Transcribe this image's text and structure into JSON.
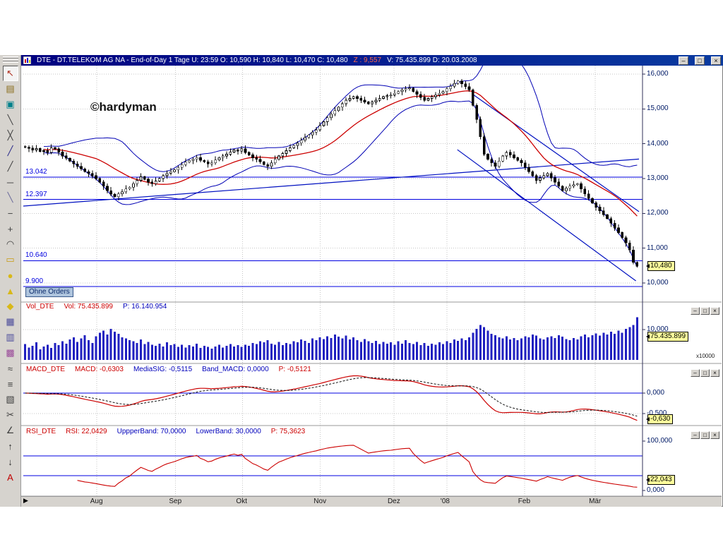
{
  "colors": {
    "title_bg": "#000080",
    "z_red": "#ff6a4a",
    "header_red": "#cc0000",
    "header_blue": "#0000bb",
    "hline_blue": "#0000e0",
    "tag_bg": "#ffff9c",
    "axis_text": "#001a66",
    "grid_gray": "#c6c6c6",
    "band_blue": "#0000b4",
    "trend_blue": "#0010c0",
    "ma_red": "#cc0000",
    "volume_blue": "#2020c0",
    "macd_red": "#cc0000",
    "macd_signal": "#111111",
    "rsi_red": "#cc0000",
    "separator": "#9a9a9a",
    "axis_line": "#30305a"
  },
  "title_bar": {
    "left": "DTE - DT.TELEKOM AG NA - End-of-Day 1 Tage  U: 23:59  O: 10,590  H: 10,840  L: 10,470  C: 10,480",
    "z": "Z : 9,557",
    "right": "V: 75.435.899  D: 20.03.2008",
    "buttons": {
      "minimize": "–",
      "maximize": "□",
      "close": "×"
    }
  },
  "panel_buttons": {
    "minimize": "–",
    "maximize": "□",
    "close": "×"
  },
  "watermark": "©hardyman",
  "toolbar": {
    "tools": [
      {
        "name": "pointer-tool",
        "glyph": "↖",
        "color": "#b03020",
        "active": true
      },
      {
        "name": "layers-tool",
        "glyph": "▤",
        "color": "#8a6d1c"
      },
      {
        "name": "zoom-region-tool",
        "glyph": "▣",
        "color": "#00808a"
      },
      {
        "name": "trendline-tool",
        "glyph": "╲",
        "color": "#404040"
      },
      {
        "name": "crossline-tool",
        "glyph": "╳",
        "color": "#404040"
      },
      {
        "name": "regression-tool",
        "glyph": "╱",
        "color": "#2a2a8a"
      },
      {
        "name": "ray-tool",
        "glyph": "╱",
        "color": "#404040"
      },
      {
        "name": "extended-line-tool",
        "glyph": "─",
        "color": "#404040"
      },
      {
        "name": "segment-tool",
        "glyph": "╲",
        "color": "#6a6a9a"
      },
      {
        "name": "minus-tool",
        "glyph": "−",
        "color": "#404040"
      },
      {
        "name": "plus-tool",
        "glyph": "+",
        "color": "#404040"
      },
      {
        "name": "arc-tool",
        "glyph": "◠",
        "color": "#404040"
      },
      {
        "name": "rectangle-tool",
        "glyph": "▭",
        "color": "#c89a10"
      },
      {
        "name": "ellipse-tool",
        "glyph": "●",
        "color": "#d8b818"
      },
      {
        "name": "triangle-tool",
        "glyph": "▲",
        "color": "#d8b818"
      },
      {
        "name": "diamond-tool",
        "glyph": "◆",
        "color": "#d8b818"
      },
      {
        "name": "grid-tool",
        "glyph": "▦",
        "color": "#4a4a9a"
      },
      {
        "name": "columns-tool",
        "glyph": "▥",
        "color": "#4a4a9a"
      },
      {
        "name": "pattern-tool",
        "glyph": "▩",
        "color": "#9a4a9a"
      },
      {
        "name": "wave-tool",
        "glyph": "≈",
        "color": "#404040"
      },
      {
        "name": "fibonacci-tool",
        "glyph": "≡",
        "color": "#404040"
      },
      {
        "name": "list-tool",
        "glyph": "▧",
        "color": "#404040"
      },
      {
        "name": "cut-tool",
        "glyph": "✂",
        "color": "#404040"
      },
      {
        "name": "angle-tool",
        "glyph": "∠",
        "color": "#404040"
      },
      {
        "name": "arrow-up-tool",
        "glyph": "↑",
        "color": "#303030"
      },
      {
        "name": "arrow-down-tool",
        "glyph": "↓",
        "color": "#303030"
      },
      {
        "name": "text-tool",
        "glyph": "A",
        "color": "#c00000"
      }
    ]
  },
  "price_panel": {
    "ticks": [
      {
        "label": "16,000",
        "value": 16000
      },
      {
        "label": "15,000",
        "value": 15000
      },
      {
        "label": "14,000",
        "value": 14000
      },
      {
        "label": "13,000",
        "value": 13000
      },
      {
        "label": "12,000",
        "value": 12000
      },
      {
        "label": "11,000",
        "value": 11000
      },
      {
        "label": "10,000",
        "value": 10000
      }
    ],
    "hlines": [
      {
        "label": "13.042",
        "value": 13042
      },
      {
        "label": "12.397",
        "value": 12397
      },
      {
        "label": "10.640",
        "value": 10640
      },
      {
        "label": "9.900",
        "value": 9900
      }
    ],
    "last_price_tag": "10,480",
    "orders_label": "Ohne Orders"
  },
  "volume_panel": {
    "name": "Vol_DTE",
    "fields": [
      {
        "text": "Vol: 75.435.899",
        "color": "red"
      },
      {
        "text": "P: 16.140.954",
        "color": "blue"
      }
    ],
    "axis_tick": "10,000",
    "multiplier": "x10000",
    "tag": "75.435.899"
  },
  "macd_panel": {
    "name": "MACD_DTE",
    "fields": [
      {
        "text": "MACD: -0,6303",
        "color": "red"
      },
      {
        "text": "MediaSIG: -0,5115",
        "color": "blue"
      },
      {
        "text": "Band_MACD: 0,0000",
        "color": "blue"
      },
      {
        "text": "P: -0,5121",
        "color": "red"
      }
    ],
    "axis_ticks": [
      {
        "label": "0,000",
        "value": 0
      },
      {
        "label": "-0,500",
        "value": -0.5
      }
    ],
    "tag": "-0,630"
  },
  "rsi_panel": {
    "name": "RSI_DTE",
    "fields": [
      {
        "text": "RSI: 22,0429",
        "color": "red"
      },
      {
        "text": "UppperBand: 70,0000",
        "color": "blue"
      },
      {
        "text": "LowerBand: 30,0000",
        "color": "blue"
      },
      {
        "text": "P: 75,3623",
        "color": "red"
      }
    ],
    "axis_ticks": [
      {
        "label": "100,000",
        "value": 100
      },
      {
        "label": "0,000",
        "value": 0
      }
    ],
    "tag": "22,043"
  },
  "x_axis": {
    "scroll_glyph": "▶",
    "months": [
      {
        "label": "Aug",
        "f": 0.119
      },
      {
        "label": "Sep",
        "f": 0.247
      },
      {
        "label": "Okt",
        "f": 0.356
      },
      {
        "label": "Nov",
        "f": 0.482
      },
      {
        "label": "Dez",
        "f": 0.602
      },
      {
        "label": "'08",
        "f": 0.688
      },
      {
        "label": "Feb",
        "f": 0.814
      },
      {
        "label": "Mär",
        "f": 0.929
      }
    ]
  },
  "chart_data": {
    "type": "candlestick",
    "title": "DTE - DT.TELEKOM AG NA End-of-Day 1 Tage",
    "ylim": [
      9450,
      16250
    ],
    "yticks": [
      10000,
      11000,
      12000,
      13000,
      14000,
      15000,
      16000
    ],
    "x_months": [
      "Aug",
      "Sep",
      "Okt",
      "Nov",
      "Dez",
      "'08",
      "Feb",
      "Mär"
    ],
    "first_open": 13920,
    "last_close": 10480,
    "closes": [
      13900,
      13870,
      13820,
      13860,
      13780,
      13800,
      13750,
      13880,
      13850,
      13760,
      13650,
      13580,
      13500,
      13420,
      13350,
      13280,
      13200,
      13150,
      13080,
      13000,
      12900,
      12780,
      12650,
      12550,
      12480,
      12560,
      12620,
      12700,
      12750,
      12850,
      12950,
      13050,
      12980,
      12900,
      12850,
      12930,
      13000,
      13080,
      13150,
      13200,
      13250,
      13320,
      13400,
      13470,
      13520,
      13550,
      13600,
      13520,
      13480,
      13420,
      13450,
      13530,
      13600,
      13650,
      13700,
      13760,
      13820,
      13790,
      13850,
      13750,
      13680,
      13600,
      13550,
      13480,
      13400,
      13350,
      13450,
      13550,
      13650,
      13720,
      13800,
      13880,
      13950,
      14020,
      14100,
      14180,
      14250,
      14330,
      14400,
      14520,
      14630,
      14750,
      14850,
      14950,
      15050,
      15150,
      15250,
      15300,
      15350,
      15300,
      15250,
      15200,
      15150,
      15200,
      15250,
      15300,
      15350,
      15380,
      15400,
      15450,
      15500,
      15550,
      15580,
      15600,
      15500,
      15420,
      15330,
      15250,
      15300,
      15350,
      15400,
      15450,
      15500,
      15580,
      15650,
      15730,
      15800,
      15720,
      15640,
      15550,
      15100,
      14700,
      14200,
      13700,
      13550,
      13450,
      13350,
      13500,
      13650,
      13750,
      13680,
      13600,
      13520,
      13450,
      13320,
      13200,
      13080,
      12950,
      13020,
      13080,
      13150,
      13020,
      12900,
      12780,
      12650,
      12720,
      12780,
      12820,
      12850,
      12700,
      12560,
      12430,
      12300,
      12180,
      12070,
      11960,
      11850,
      11720,
      11580,
      11450,
      11300,
      11150,
      10950,
      10590,
      10480
    ],
    "volume_millions": [
      28,
      22,
      25,
      31,
      19,
      24,
      27,
      21,
      30,
      26,
      33,
      29,
      36,
      40,
      32,
      38,
      44,
      35,
      30,
      42,
      48,
      52,
      45,
      55,
      50,
      46,
      40,
      38,
      35,
      33,
      30,
      36,
      28,
      32,
      27,
      25,
      29,
      24,
      31,
      26,
      28,
      23,
      27,
      22,
      26,
      24,
      29,
      21,
      25,
      23,
      20,
      24,
      27,
      22,
      25,
      28,
      24,
      26,
      23,
      27,
      25,
      30,
      28,
      33,
      31,
      35,
      29,
      27,
      32,
      26,
      30,
      28,
      33,
      31,
      36,
      34,
      30,
      38,
      35,
      40,
      37,
      42,
      39,
      45,
      41,
      38,
      43,
      36,
      40,
      35,
      32,
      37,
      33,
      30,
      34,
      28,
      32,
      29,
      31,
      27,
      33,
      29,
      35,
      30,
      28,
      32,
      26,
      30,
      25,
      29,
      27,
      31,
      28,
      33,
      30,
      36,
      34,
      38,
      35,
      40,
      48,
      55,
      62,
      58,
      52,
      46,
      44,
      40,
      38,
      42,
      36,
      39,
      35,
      38,
      42,
      40,
      45,
      43,
      38,
      36,
      40,
      42,
      39,
      44,
      41,
      37,
      35,
      39,
      36,
      42,
      45,
      40,
      44,
      47,
      43,
      48,
      45,
      50,
      46,
      52,
      48,
      55,
      58,
      62,
      75.4
    ],
    "overlays": {
      "sma_period": 20,
      "bollinger_mult": 2
    },
    "support_lines": [
      13042,
      12397,
      10640,
      9900
    ],
    "trendlines": [
      {
        "f1": 0,
        "p1": 12210,
        "f2": 1,
        "p2": 13560
      },
      {
        "f1": 0.705,
        "p1": 13830,
        "f2": 0.995,
        "p2": 10060
      },
      {
        "f1": 0.73,
        "p1": 15420,
        "f2": 1.0,
        "p2": 12050
      }
    ],
    "macd": {
      "fast": 12,
      "slow": 26,
      "signal": 9,
      "last": -0.6303,
      "signal_last": -0.5115
    },
    "rsi": {
      "period": 14,
      "upper": 70,
      "lower": 30,
      "last": 22.0429
    },
    "volume_axis": {
      "tick_value_millions": 100,
      "last": 75.435899
    }
  }
}
